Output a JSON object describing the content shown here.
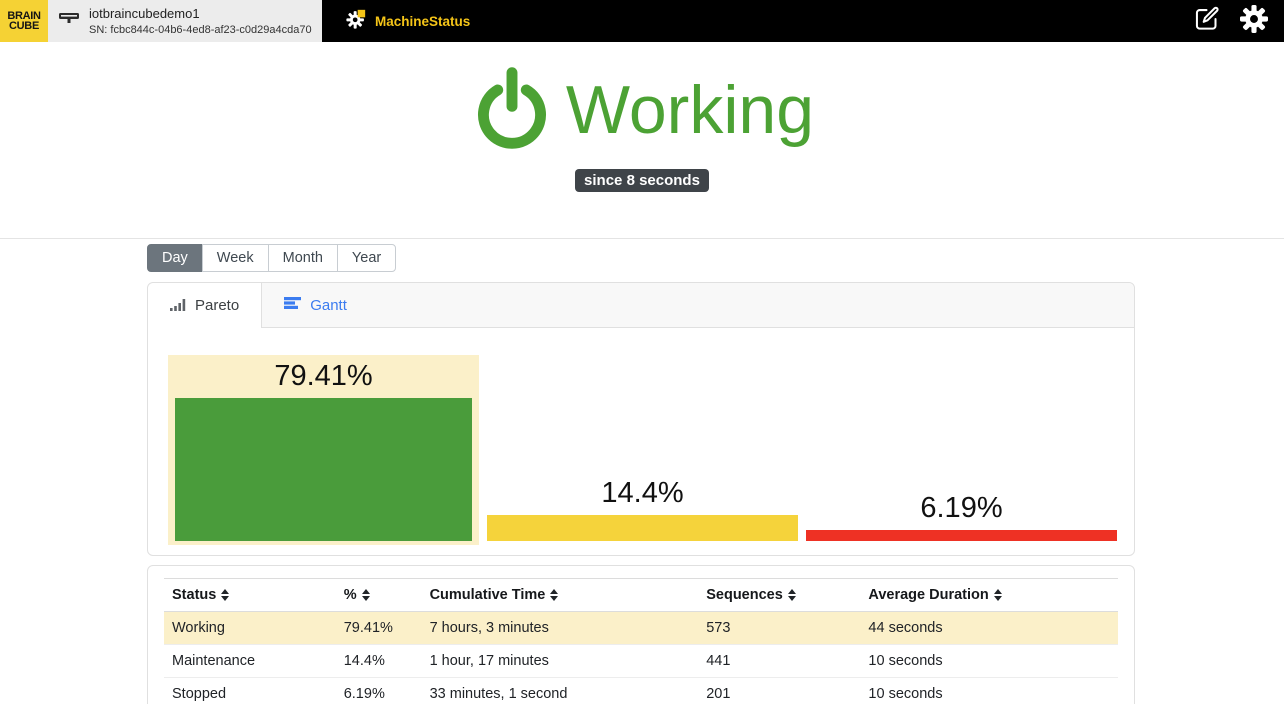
{
  "topbar": {
    "logo_line1": "BRAIN",
    "logo_line2": "CUBE",
    "device": {
      "name": "iotbraincubedemo1",
      "sn": "SN: fcbc844c-04b6-4ed8-af23-c0d29a4cda70"
    },
    "app_tab_label": "MachineStatus"
  },
  "hero": {
    "status": "Working",
    "since": "since 8 seconds"
  },
  "period_tabs": [
    {
      "label": "Day",
      "active": true
    },
    {
      "label": "Week",
      "active": false
    },
    {
      "label": "Month",
      "active": false
    },
    {
      "label": "Year",
      "active": false
    }
  ],
  "view_tabs": {
    "pareto": "Pareto",
    "gantt": "Gantt"
  },
  "chart_data": {
    "type": "bar",
    "title": "",
    "xlabel": "",
    "ylabel": "",
    "ylim": [
      0,
      100
    ],
    "grid": false,
    "categories": [
      "Working",
      "Maintenance",
      "Stopped"
    ],
    "values": [
      79.41,
      14.4,
      6.19
    ],
    "bars": [
      {
        "category": "Working",
        "label": "79.41%",
        "value": 79.41,
        "color": "#4a9c3b",
        "highlighted": true
      },
      {
        "category": "Maintenance",
        "label": "14.4%",
        "value": 14.4,
        "color": "#f5d33b",
        "highlighted": false
      },
      {
        "category": "Stopped",
        "label": "6.19%",
        "value": 6.19,
        "color": "#ee3124",
        "highlighted": false
      }
    ]
  },
  "table": {
    "headers": [
      "Status",
      "%",
      "Cumulative Time",
      "Sequences",
      "Average Duration"
    ],
    "highlighted_row": 0,
    "rows": [
      {
        "status": "Working",
        "percent": "79.41%",
        "cumulative_time": "7 hours, 3 minutes",
        "sequences": "573",
        "average_duration": "44 seconds"
      },
      {
        "status": "Maintenance",
        "percent": "14.4%",
        "cumulative_time": "1 hour, 17 minutes",
        "sequences": "441",
        "average_duration": "10 seconds"
      },
      {
        "status": "Stopped",
        "percent": "6.19%",
        "cumulative_time": "33 minutes, 1 second",
        "sequences": "201",
        "average_duration": "10 seconds"
      }
    ]
  },
  "colors": {
    "status_green": "#4ca234",
    "bar_green": "#4a9c3b",
    "bar_yellow": "#f5d33b",
    "bar_red": "#ee3124",
    "highlight_cream": "#fbf0c9",
    "brand_yellow": "#f5d234",
    "app_tab_yellow": "#f5c518",
    "gantt_blue": "#3b7cf0",
    "badge_bg": "#3f4449",
    "topbar_bg": "#000000"
  }
}
